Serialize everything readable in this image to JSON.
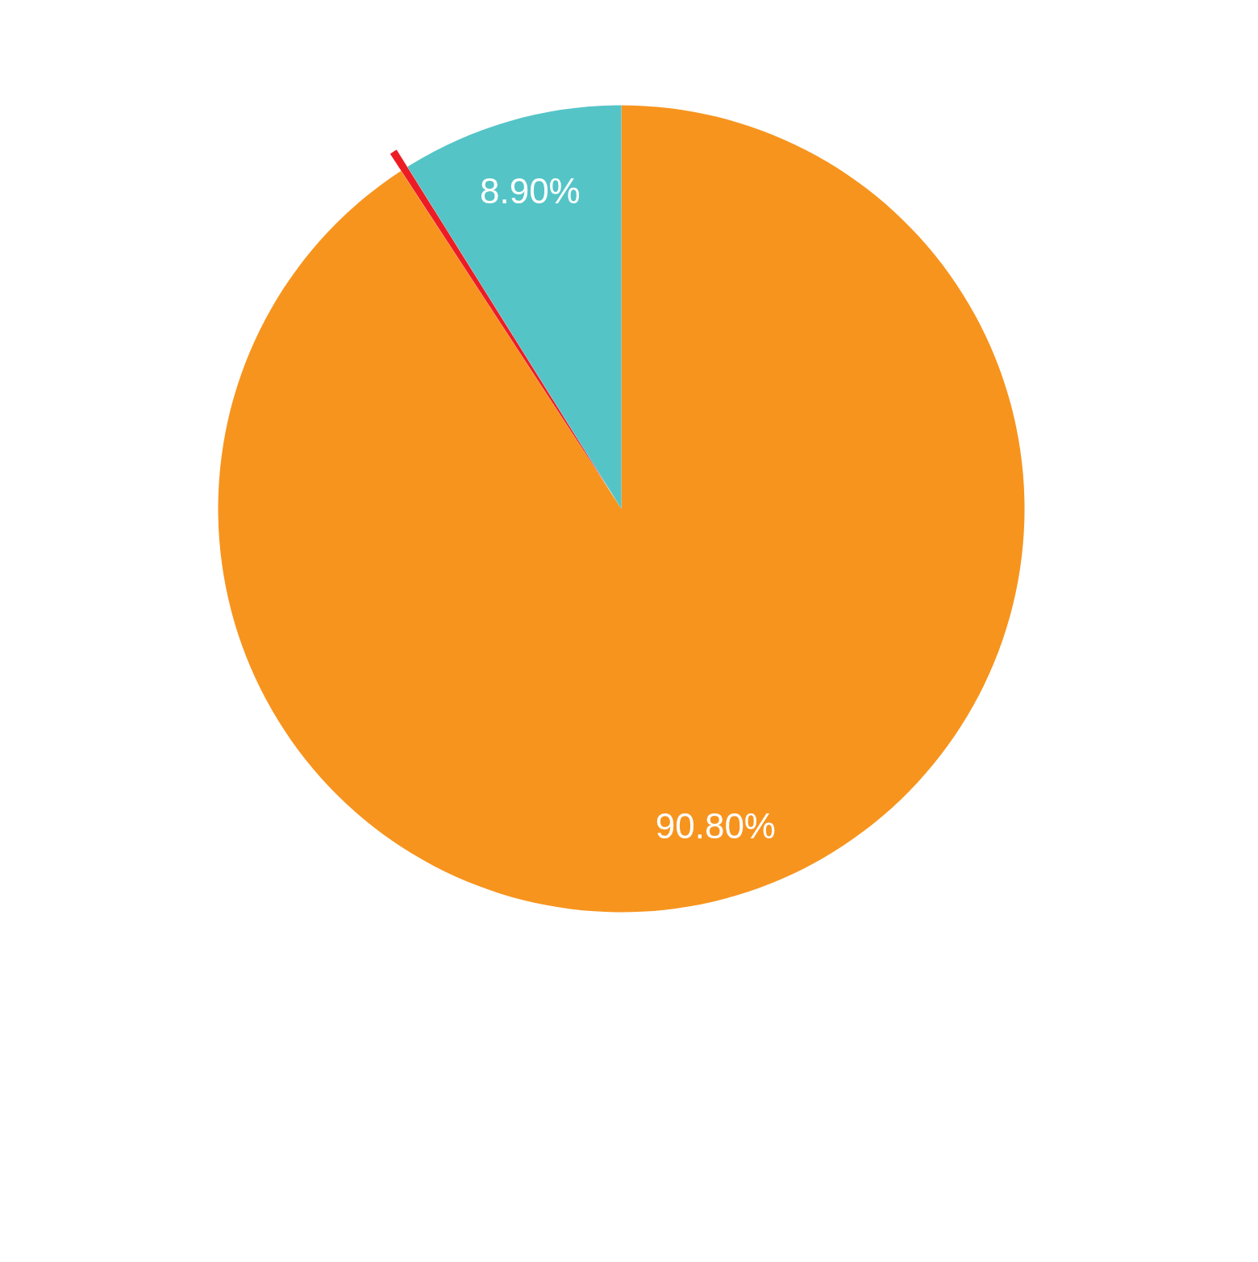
{
  "chart_data": {
    "type": "pie",
    "categories": [
      null,
      null,
      null
    ],
    "values": [
      90.8,
      0.3,
      8.9
    ],
    "colors": [
      "#f7941e",
      "#ed1c24",
      "#54c4c7"
    ],
    "value_labels": [
      "90.80%",
      null,
      "8.90%"
    ]
  }
}
